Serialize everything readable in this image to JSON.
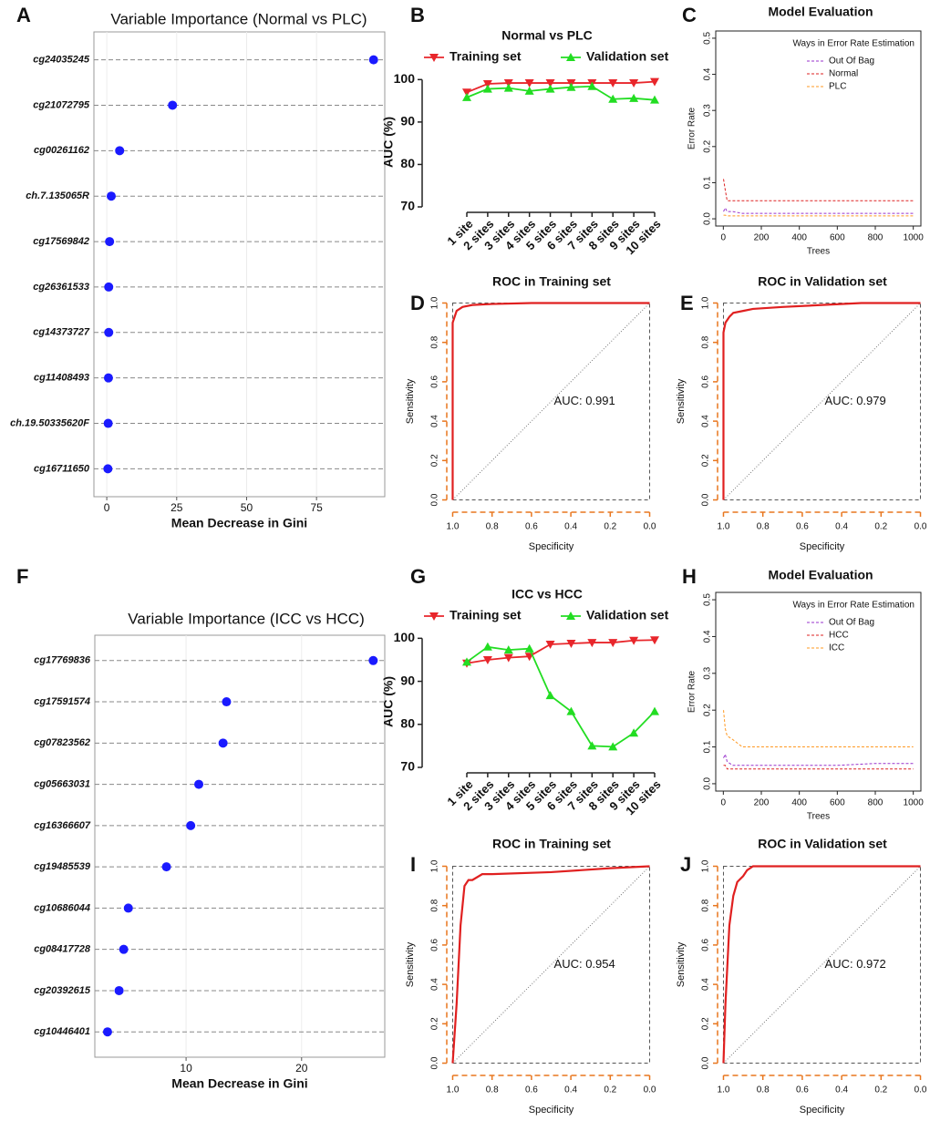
{
  "chart_data": [
    {
      "type": "dot",
      "label": "A",
      "title": "Variable Importance (Normal vs PLC)",
      "xlabel": "Mean Decrease in Gini",
      "categories": [
        "cg24035245",
        "cg21072795",
        "cg00261162",
        "ch.7.135065R",
        "cg17569842",
        "cg26361533",
        "cg14373727",
        "cg11408493",
        "ch.19.50335620F",
        "cg16711650"
      ],
      "values": [
        95.4,
        23.5,
        4.6,
        1.6,
        1.0,
        0.7,
        0.7,
        0.6,
        0.5,
        0.4
      ],
      "color": "#1a1aff",
      "xlim": [
        -4.6,
        99.4
      ],
      "xticks": [
        0,
        25,
        50,
        75
      ],
      "grid": true
    },
    {
      "type": "line",
      "label": "B",
      "title": "Normal vs PLC",
      "ylabel": "AUC (%)",
      "categories": [
        "1 site",
        "2 sites",
        "3 sites",
        "4 sites",
        "5 sites",
        "6 sites",
        "7 sites",
        "8 sites",
        "9 sites",
        "10 sites"
      ],
      "series": [
        {
          "name": "Training set",
          "color": "#e8262b",
          "marker": "triangle-down",
          "values": [
            97,
            99,
            99.2,
            99.2,
            99.2,
            99.2,
            99.2,
            99.2,
            99.2,
            99.5
          ]
        },
        {
          "name": "Validation set",
          "color": "#22dd22",
          "marker": "triangle-up",
          "values": [
            95.8,
            97.8,
            98,
            97.3,
            97.8,
            98.2,
            98.4,
            95.4,
            95.6,
            95.2
          ]
        }
      ],
      "ylim": [
        70,
        100.5
      ],
      "yticks": [
        70,
        80,
        90,
        100
      ]
    },
    {
      "type": "line",
      "label": "C",
      "title": "Model Evaluation",
      "xlabel": "Trees",
      "ylabel": "Error Rate",
      "legend_title": "Ways in Error Rate Estimation",
      "legend": "top-right",
      "x": [
        1,
        10,
        20,
        50,
        100,
        200,
        400,
        600,
        800,
        1000
      ],
      "series": [
        {
          "name": "Out Of Bag",
          "color": "#9933cc",
          "values": [
            0.02,
            0.03,
            0.02,
            0.02,
            0.015,
            0.015,
            0.015,
            0.015,
            0.015,
            0.015
          ]
        },
        {
          "name": "Normal",
          "color": "#dd2222",
          "values": [
            0.11,
            0.08,
            0.05,
            0.05,
            0.05,
            0.05,
            0.05,
            0.05,
            0.05,
            0.05
          ]
        },
        {
          "name": "PLC",
          "color": "#ff9922",
          "values": [
            0.01,
            0.01,
            0.008,
            0.008,
            0.008,
            0.008,
            0.008,
            0.008,
            0.008,
            0.008
          ]
        }
      ],
      "xlim": [
        -40,
        1040
      ],
      "xticks": [
        0,
        200,
        400,
        600,
        800,
        1000
      ],
      "ylim": [
        -0.02,
        0.52
      ],
      "yticks": [
        {
          "value": 0,
          "label": "0.0"
        },
        0.1,
        0.2,
        0.3,
        0.4,
        0.5
      ]
    },
    {
      "type": "roc",
      "label": "D",
      "title": "ROC in Training set",
      "xlabel": "Specificity",
      "ylabel": "Sensitivity",
      "annotation": "AUC: 0.991",
      "color": "#e02020",
      "x": [
        1,
        1,
        0.98,
        0.95,
        0.9,
        0.8,
        0.6,
        0.4,
        0.2,
        0
      ],
      "values": [
        0,
        0.9,
        0.96,
        0.98,
        0.99,
        0.995,
        1,
        1,
        1,
        1
      ],
      "xlim": [
        1.03,
        -0.03
      ],
      "ylim": [
        -0.03,
        1.03
      ],
      "xticks": [
        {
          "value": 1,
          "label": "1.0"
        },
        0.8,
        0.6,
        0.4,
        0.2,
        {
          "value": 0,
          "label": "0.0"
        }
      ],
      "yticks": [
        {
          "value": 0,
          "label": "0.0"
        },
        0.2,
        0.4,
        0.6,
        0.8,
        {
          "value": 1,
          "label": "1.0"
        }
      ]
    },
    {
      "type": "roc",
      "label": "E",
      "title": "ROC in Validation set",
      "xlabel": "Specificity",
      "ylabel": "Sensitivity",
      "annotation": "AUC: 0.979",
      "color": "#e02020",
      "x": [
        1,
        1,
        0.99,
        0.97,
        0.95,
        0.9,
        0.85,
        0.7,
        0.5,
        0.3,
        0
      ],
      "values": [
        0,
        0.85,
        0.9,
        0.93,
        0.95,
        0.96,
        0.97,
        0.98,
        0.99,
        1,
        1
      ],
      "xlim": [
        1.03,
        -0.03
      ],
      "ylim": [
        -0.03,
        1.03
      ],
      "xticks": [
        {
          "value": 1,
          "label": "1.0"
        },
        0.8,
        0.6,
        0.4,
        0.2,
        {
          "value": 0,
          "label": "0.0"
        }
      ],
      "yticks": [
        {
          "value": 0,
          "label": "0.0"
        },
        0.2,
        0.4,
        0.6,
        0.8,
        {
          "value": 1,
          "label": "1.0"
        }
      ]
    },
    {
      "type": "dot",
      "label": "F",
      "title": "Variable Importance (ICC vs HCC)",
      "xlabel": "Mean Decrease in Gini",
      "categories": [
        "cg17769836",
        "cg17591574",
        "cg07823562",
        "cg05663031",
        "cg16366607",
        "cg19485539",
        "cg10686044",
        "cg08417728",
        "cg20392615",
        "cg10446401"
      ],
      "values": [
        26.2,
        13.5,
        13.2,
        11.1,
        10.4,
        8.3,
        5.0,
        4.6,
        4.2,
        3.2
      ],
      "color": "#1a1aff",
      "xlim": [
        2.1,
        27.2
      ],
      "xticks": [
        10,
        20
      ],
      "grid": true
    },
    {
      "type": "line",
      "label": "G",
      "title": "ICC vs HCC",
      "ylabel": "AUC (%)",
      "categories": [
        "1 site",
        "2 sites",
        "3 sites",
        "4 sites",
        "5 sites",
        "6 sites",
        "7 sites",
        "8 sites",
        "9 sites",
        "10 sites"
      ],
      "series": [
        {
          "name": "Training set",
          "color": "#e8262b",
          "marker": "triangle-down",
          "values": [
            94.2,
            95,
            95.5,
            95.8,
            98.6,
            98.8,
            99,
            99,
            99.5,
            99.6
          ]
        },
        {
          "name": "Validation set",
          "color": "#22dd22",
          "marker": "triangle-up",
          "values": [
            94.5,
            98,
            97.3,
            97.6,
            86.7,
            83,
            75,
            74.8,
            78,
            83
          ]
        }
      ],
      "ylim": [
        70,
        100.5
      ],
      "yticks": [
        70,
        80,
        90,
        100
      ]
    },
    {
      "type": "line",
      "label": "H",
      "title": "Model Evaluation",
      "xlabel": "Trees",
      "ylabel": "Error Rate",
      "legend_title": "Ways in Error Rate Estimation",
      "legend": "top-right",
      "x": [
        1,
        10,
        20,
        50,
        100,
        200,
        400,
        600,
        800,
        1000
      ],
      "series": [
        {
          "name": "Out Of Bag",
          "color": "#9933cc",
          "values": [
            0.07,
            0.08,
            0.06,
            0.05,
            0.05,
            0.05,
            0.05,
            0.05,
            0.055,
            0.055
          ]
        },
        {
          "name": "HCC",
          "color": "#dd2222",
          "values": [
            0.05,
            0.05,
            0.04,
            0.04,
            0.04,
            0.04,
            0.04,
            0.04,
            0.04,
            0.04
          ]
        },
        {
          "name": "ICC",
          "color": "#ff9922",
          "values": [
            0.2,
            0.15,
            0.13,
            0.12,
            0.1,
            0.1,
            0.1,
            0.1,
            0.1,
            0.1
          ]
        }
      ],
      "xlim": [
        -40,
        1040
      ],
      "xticks": [
        0,
        200,
        400,
        600,
        800,
        1000
      ],
      "ylim": [
        -0.02,
        0.52
      ],
      "yticks": [
        {
          "value": 0,
          "label": "0.0"
        },
        0.1,
        0.2,
        0.3,
        0.4,
        0.5
      ]
    },
    {
      "type": "roc",
      "label": "I",
      "title": "ROC in Training set",
      "xlabel": "Specificity",
      "ylabel": "Sensitivity",
      "annotation": "AUC: 0.954",
      "color": "#e02020",
      "x": [
        1,
        0.98,
        0.96,
        0.94,
        0.92,
        0.9,
        0.85,
        0.8,
        0.5,
        0.2,
        0
      ],
      "values": [
        0,
        0.3,
        0.7,
        0.9,
        0.93,
        0.93,
        0.96,
        0.96,
        0.97,
        0.99,
        1
      ],
      "xlim": [
        1.03,
        -0.03
      ],
      "ylim": [
        -0.03,
        1.03
      ],
      "xticks": [
        {
          "value": 1,
          "label": "1.0"
        },
        0.8,
        0.6,
        0.4,
        0.2,
        {
          "value": 0,
          "label": "0.0"
        }
      ],
      "yticks": [
        {
          "value": 0,
          "label": "0.0"
        },
        0.2,
        0.4,
        0.6,
        0.8,
        {
          "value": 1,
          "label": "1.0"
        }
      ]
    },
    {
      "type": "roc",
      "label": "J",
      "title": "ROC in Validation set",
      "xlabel": "Specificity",
      "ylabel": "Sensitivity",
      "annotation": "AUC: 0.972",
      "color": "#e02020",
      "x": [
        1,
        0.99,
        0.97,
        0.95,
        0.93,
        0.9,
        0.88,
        0.85,
        0.8,
        0.5,
        0
      ],
      "values": [
        0,
        0.3,
        0.7,
        0.85,
        0.92,
        0.95,
        0.98,
        1,
        1,
        1,
        1
      ],
      "xlim": [
        1.03,
        -0.03
      ],
      "ylim": [
        -0.03,
        1.03
      ],
      "xticks": [
        {
          "value": 1,
          "label": "1.0"
        },
        0.8,
        0.6,
        0.4,
        0.2,
        {
          "value": 0,
          "label": "0.0"
        }
      ],
      "yticks": [
        {
          "value": 0,
          "label": "0.0"
        },
        0.2,
        0.4,
        0.6,
        0.8,
        {
          "value": 1,
          "label": "1.0"
        }
      ]
    }
  ]
}
